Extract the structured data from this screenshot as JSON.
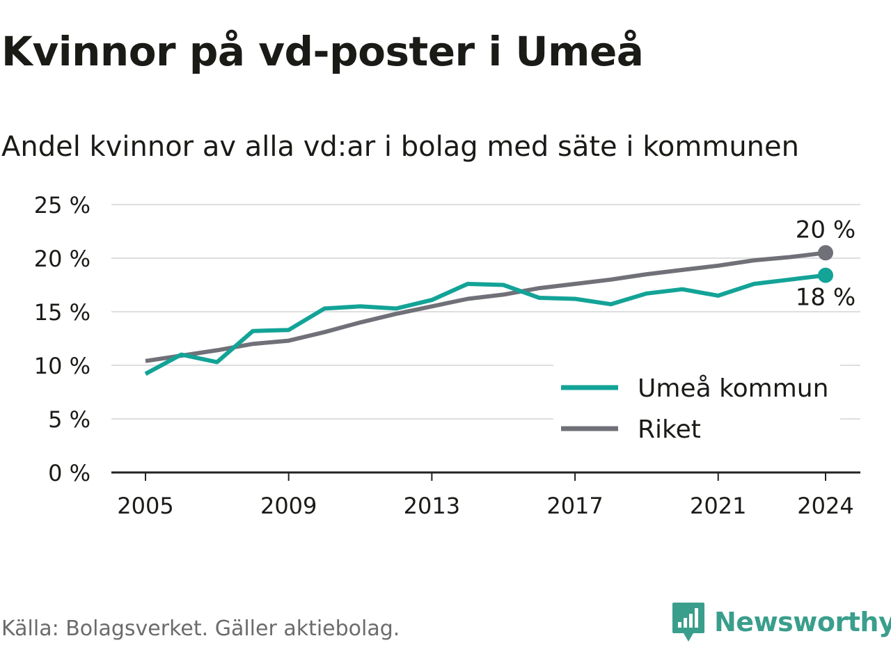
{
  "title": "Kvinnor på vd-poster i Umeå",
  "subtitle": "Andel kvinnor av alla vd:ar i bolag med säte i kommunen",
  "source": "Källa: Bolagsverket. Gäller aktiebolag.",
  "brand": {
    "name": "Newsworthy",
    "icon": "newsworthy-logo-icon",
    "color": "#3a9e8c"
  },
  "colors": {
    "umea": "#13a397",
    "riket": "#707078",
    "grid": "#dedede",
    "axis": "#222222",
    "text": "#1a1a17"
  },
  "chart_data": {
    "type": "line",
    "x": [
      2005,
      2006,
      2007,
      2008,
      2009,
      2010,
      2011,
      2012,
      2013,
      2014,
      2015,
      2016,
      2017,
      2018,
      2019,
      2020,
      2021,
      2022,
      2023,
      2024
    ],
    "series": [
      {
        "name": "Umeå kommun",
        "color": "#13a397",
        "values": [
          9.2,
          11.0,
          10.3,
          13.2,
          13.3,
          15.3,
          15.5,
          15.3,
          16.1,
          17.6,
          17.5,
          16.3,
          16.2,
          15.7,
          16.7,
          17.1,
          16.5,
          17.6,
          18.0,
          18.4
        ],
        "end_label": "18 %"
      },
      {
        "name": "Riket",
        "color": "#707078",
        "values": [
          10.4,
          10.9,
          11.4,
          12.0,
          12.3,
          13.1,
          14.0,
          14.8,
          15.5,
          16.2,
          16.6,
          17.2,
          17.6,
          18.0,
          18.5,
          18.9,
          19.3,
          19.8,
          20.1,
          20.5
        ],
        "end_label": "20 %"
      }
    ],
    "yticks": [
      {
        "value": 0,
        "label": "0 %"
      },
      {
        "value": 5,
        "label": "5 %"
      },
      {
        "value": 10,
        "label": "10 %"
      },
      {
        "value": 15,
        "label": "15 %"
      },
      {
        "value": 20,
        "label": "20 %"
      },
      {
        "value": 25,
        "label": "25 %"
      }
    ],
    "xticks": [
      {
        "value": 2005,
        "label": "2005"
      },
      {
        "value": 2009,
        "label": "2009"
      },
      {
        "value": 2013,
        "label": "2013"
      },
      {
        "value": 2017,
        "label": "2017"
      },
      {
        "value": 2021,
        "label": "2021"
      },
      {
        "value": 2024,
        "label": "2024"
      }
    ],
    "ylim": [
      0,
      25
    ],
    "xlim": [
      2005,
      2024
    ],
    "grid": true,
    "legend": "bottom-right",
    "xlabel": "",
    "ylabel": ""
  }
}
